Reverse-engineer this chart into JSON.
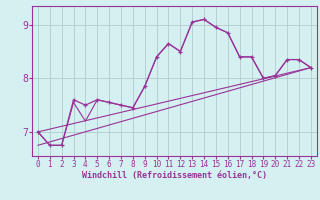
{
  "xlabel": "Windchill (Refroidissement éolien,°C)",
  "x": [
    0,
    1,
    2,
    3,
    4,
    5,
    6,
    7,
    8,
    9,
    10,
    11,
    12,
    13,
    14,
    15,
    16,
    17,
    18,
    19,
    20,
    21,
    22,
    23
  ],
  "line_jagged": [
    7.0,
    6.75,
    6.75,
    7.6,
    7.5,
    7.6,
    7.55,
    7.5,
    7.45,
    7.85,
    8.4,
    8.65,
    8.5,
    9.05,
    9.1,
    8.95,
    8.85,
    8.4,
    8.4,
    8.0,
    8.05,
    8.35,
    8.35,
    8.2
  ],
  "line_smooth": [
    7.0,
    6.75,
    6.75,
    7.55,
    7.2,
    7.6,
    7.55,
    7.5,
    7.45,
    7.85,
    8.4,
    8.65,
    8.5,
    9.05,
    9.1,
    8.95,
    8.85,
    8.4,
    8.4,
    8.0,
    8.05,
    8.35,
    8.35,
    8.2
  ],
  "trend1_x": [
    0,
    23
  ],
  "trend1_y": [
    7.0,
    8.2
  ],
  "trend2_x": [
    0,
    23
  ],
  "trend2_y": [
    6.75,
    8.2
  ],
  "color": "#993399",
  "bg_color": "#d4f0f0",
  "grid_color": "#b0cccc",
  "xlim": [
    -0.5,
    23.5
  ],
  "ylim": [
    6.55,
    9.35
  ],
  "yticks": [
    7,
    8,
    9
  ],
  "xticks": [
    0,
    1,
    2,
    3,
    4,
    5,
    6,
    7,
    8,
    9,
    10,
    11,
    12,
    13,
    14,
    15,
    16,
    17,
    18,
    19,
    20,
    21,
    22,
    23
  ],
  "tick_fontsize": 5.5,
  "xlabel_fontsize": 6.0
}
